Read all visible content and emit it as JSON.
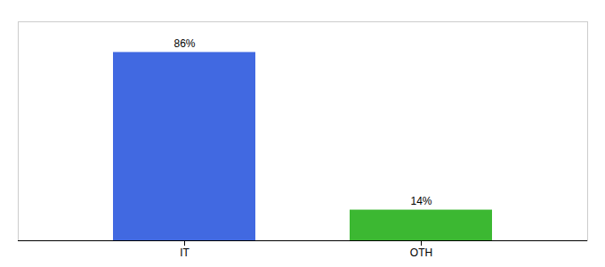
{
  "chart_data": {
    "type": "bar",
    "categories": [
      "IT",
      "OTH"
    ],
    "values": [
      86,
      14
    ],
    "value_labels": [
      "86%",
      "14%"
    ],
    "data_labels": true,
    "colors": [
      "#4169e1",
      "#3cb832"
    ],
    "ylim": [
      0,
      100
    ],
    "tick_labels": "x"
  }
}
